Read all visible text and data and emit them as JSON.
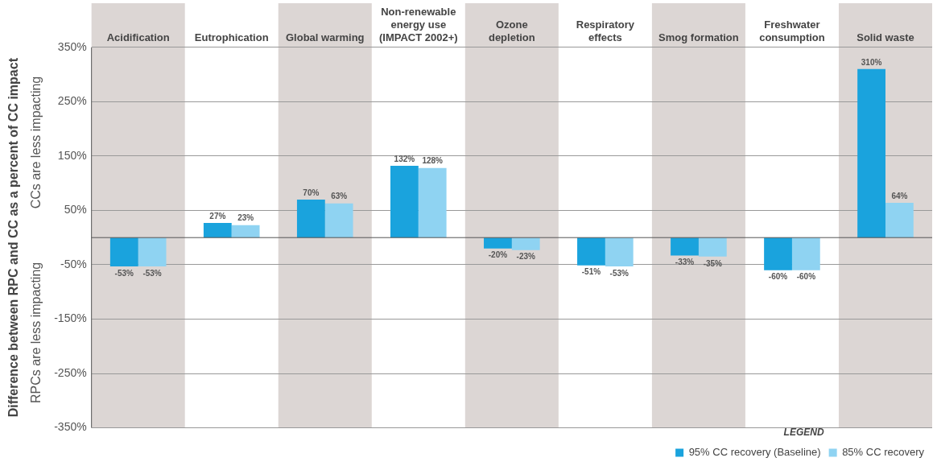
{
  "chart_data": {
    "type": "bar",
    "ylabel": "Difference between RPC and CC as a percent of CC impact",
    "categories": [
      "Acidification",
      "Eutrophication",
      "Global warming",
      "Non-renewable energy use (IMPACT 2002+)",
      "Ozone depletion",
      "Respiratory effects",
      "Smog formation",
      "Freshwater consumption",
      "Solid waste"
    ],
    "series": [
      {
        "name": "95% CC recovery (Baseline)",
        "color": "#1aa3dd",
        "values": [
          -53,
          27,
          70,
          132,
          -20,
          -51,
          -33,
          -60,
          310
        ],
        "value_labels": [
          "-53%",
          "27%",
          "70%",
          "132%",
          "-20%",
          "-51%",
          "-33%",
          "-60%",
          "310%"
        ]
      },
      {
        "name": "85% CC recovery",
        "color": "#8fd3f2",
        "values": [
          -53,
          23,
          63,
          128,
          -23,
          -53,
          -35,
          -60,
          64
        ],
        "value_labels": [
          "-53%",
          "23%",
          "63%",
          "128%",
          "-23%",
          "-53%",
          "-35%",
          "-60%",
          "64%"
        ]
      }
    ],
    "ylim": [
      -350,
      350
    ],
    "yticks": [
      {
        "value": -350,
        "label": "-350%"
      },
      {
        "value": -250,
        "label": "-250%"
      },
      {
        "value": -150,
        "label": "-150%"
      },
      {
        "value": -50,
        "label": "-50%"
      },
      {
        "value": 50,
        "label": "50%"
      },
      {
        "value": 150,
        "label": "150%"
      },
      {
        "value": 250,
        "label": "250%"
      },
      {
        "value": 350,
        "label": "350%"
      }
    ],
    "grid": "y",
    "legend": "bottom right",
    "legend_title": "LEGEND",
    "annotations": [
      "CCs are less impacting",
      "RPCs are less impacting"
    ],
    "bands": [
      {
        "axis": "x",
        "from": "Acidification",
        "to": "Acidification",
        "color": "#dcd6d4"
      },
      {
        "axis": "x",
        "from": "Global warming",
        "to": "Global warming",
        "color": "#dcd6d4"
      },
      {
        "axis": "x",
        "from": "Ozone depletion",
        "to": "Ozone depletion",
        "color": "#dcd6d4"
      },
      {
        "axis": "x",
        "from": "Smog formation",
        "to": "Smog formation",
        "color": "#dcd6d4"
      },
      {
        "axis": "x",
        "from": "Solid waste",
        "to": "Solid waste",
        "color": "#dcd6d4"
      }
    ]
  }
}
